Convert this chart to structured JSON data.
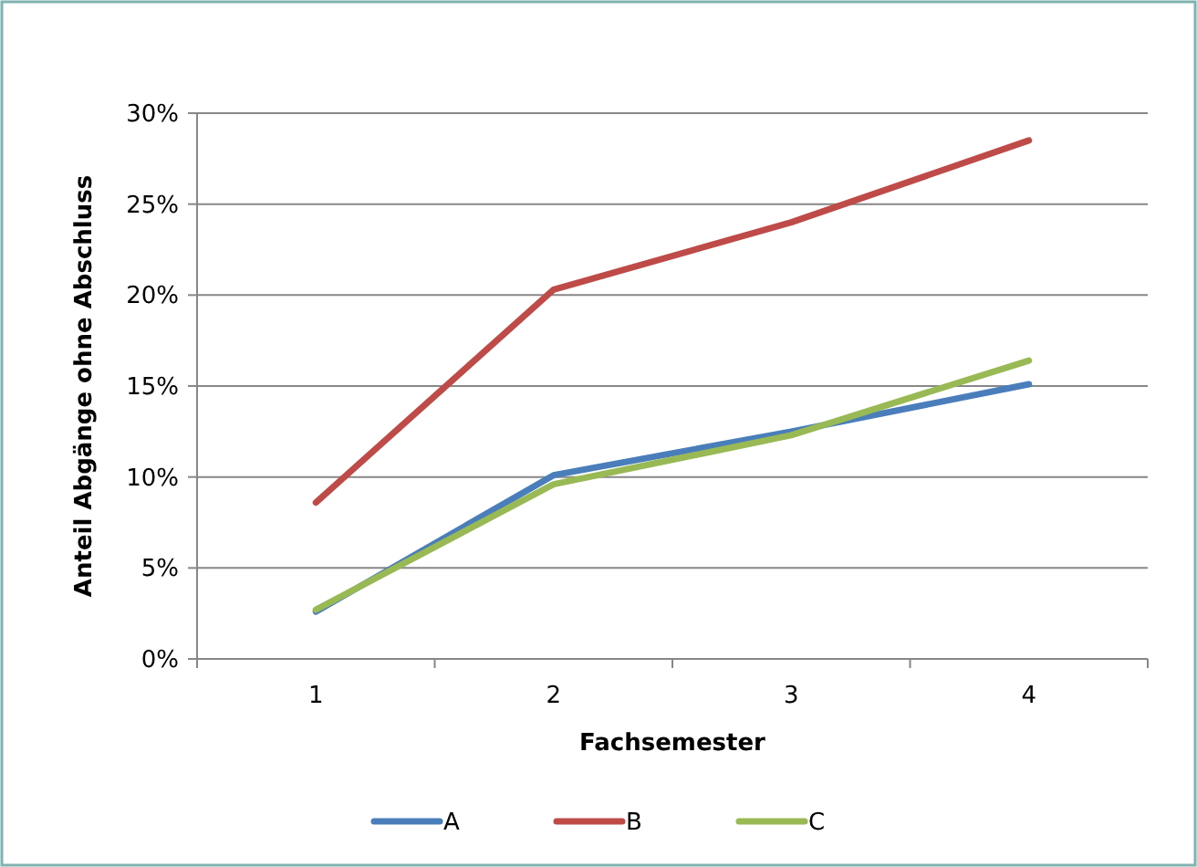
{
  "chart_data": {
    "type": "line",
    "xlabel": "Fachsemester",
    "ylabel": "Anteil Abgänge ohne Abschluss",
    "categories": [
      "1",
      "2",
      "3",
      "4"
    ],
    "series": [
      {
        "name": "A",
        "color": "#4a7ebb",
        "values": [
          2.6,
          10.1,
          12.5,
          15.1
        ]
      },
      {
        "name": "B",
        "color": "#be4b48",
        "values": [
          8.6,
          20.3,
          24.0,
          28.5
        ]
      },
      {
        "name": "C",
        "color": "#98b954",
        "values": [
          2.7,
          9.6,
          12.3,
          16.4
        ]
      }
    ],
    "ylim": [
      0,
      30
    ],
    "yticks": [
      {
        "value": 0,
        "label": "0%"
      },
      {
        "value": 5,
        "label": "5%"
      },
      {
        "value": 10,
        "label": "10%"
      },
      {
        "value": 15,
        "label": "15%"
      },
      {
        "value": 20,
        "label": "20%"
      },
      {
        "value": 25,
        "label": "25%"
      },
      {
        "value": 30,
        "label": "30%"
      }
    ],
    "grid": "y",
    "legend": "bottom",
    "marker": "none",
    "line_style": "solid"
  }
}
